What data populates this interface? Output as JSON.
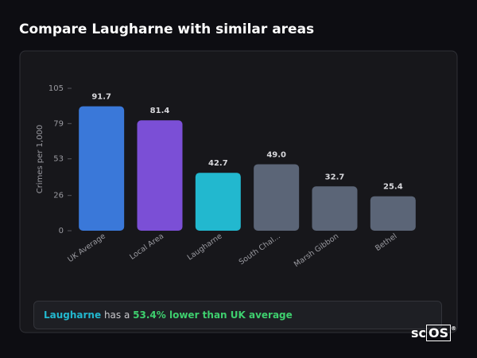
{
  "page_title": "Compare Laugharne with similar areas",
  "chart_data": {
    "type": "bar",
    "y_label": "Crimes per 1,000",
    "categories": [
      "UK Average",
      "Local Area",
      "Laugharne",
      "South Chal...",
      "Marsh Gibbon",
      "Bethel"
    ],
    "values": [
      91.7,
      81.4,
      42.7,
      49.0,
      32.7,
      25.4
    ],
    "value_labels": [
      "91.7",
      "81.4",
      "42.7",
      "49.0",
      "32.7",
      "25.4"
    ],
    "colors": [
      "#3a78d9",
      "#7b4fd6",
      "#22b8cf",
      "#5b6577",
      "#5b6577",
      "#5b6577"
    ],
    "ylim": [
      0,
      105
    ],
    "yticks": [
      0,
      26,
      53,
      79,
      105
    ],
    "grid": false
  },
  "summary": {
    "area": "Laugharne",
    "text": "has a",
    "comparison": "53.4% lower than UK average"
  },
  "brand": {
    "prefix": "sc",
    "boxed": "OS",
    "mark": "®"
  }
}
